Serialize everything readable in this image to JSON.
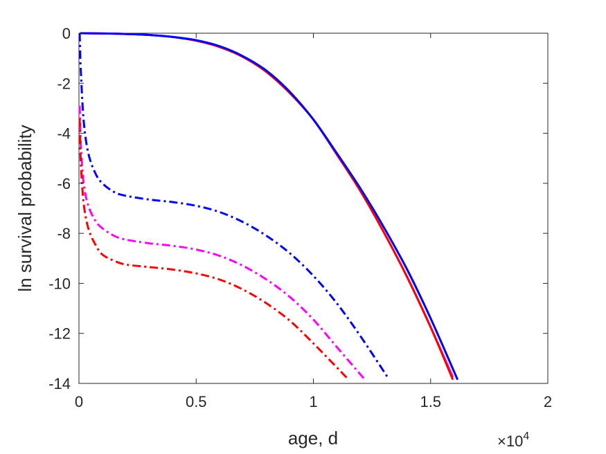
{
  "chart_data": {
    "type": "line",
    "title": "",
    "xlabel": "age, d",
    "ylabel": "ln survival probability",
    "x_exponent_label": "×10",
    "x_exponent_power": "4",
    "xlim": [
      0,
      20000
    ],
    "ylim": [
      -14,
      0
    ],
    "xticks": [
      0,
      5000,
      10000,
      15000,
      20000
    ],
    "xtick_labels": [
      "0",
      "0.5",
      "1",
      "1.5",
      "2"
    ],
    "yticks": [
      0,
      -2,
      -4,
      -6,
      -8,
      -10,
      -12,
      -14
    ],
    "ytick_labels": [
      "0",
      "-2",
      "-4",
      "-6",
      "-8",
      "-10",
      "-12",
      "-14"
    ],
    "grid": false,
    "legend": "none",
    "series": [
      {
        "color": "#ff00ff",
        "style": "solid",
        "x": [
          50,
          1000,
          2000,
          3000,
          4000,
          5000,
          6000,
          7000,
          8000,
          9000,
          10000,
          11000,
          12000,
          13000,
          14000,
          15000,
          15950
        ],
        "y": [
          0,
          -0.01,
          -0.03,
          -0.07,
          -0.15,
          -0.3,
          -0.55,
          -0.95,
          -1.55,
          -2.4,
          -3.45,
          -4.85,
          -6.3,
          -7.95,
          -9.75,
          -11.75,
          -13.75
        ]
      },
      {
        "color": "#ff0000",
        "style": "solid",
        "x": [
          50,
          1000,
          2000,
          3000,
          4000,
          5000,
          6000,
          7000,
          8000,
          9000,
          10000,
          11000,
          12000,
          13000,
          14000,
          15000,
          15950
        ],
        "y": [
          0,
          -0.01,
          -0.03,
          -0.07,
          -0.15,
          -0.3,
          -0.55,
          -0.95,
          -1.55,
          -2.4,
          -3.45,
          -4.85,
          -6.3,
          -7.95,
          -9.75,
          -11.75,
          -13.85
        ]
      },
      {
        "color": "#0000ff",
        "style": "solid",
        "x": [
          50,
          1000,
          2000,
          3000,
          4000,
          5000,
          6000,
          7000,
          8000,
          9000,
          10000,
          11000,
          12000,
          13000,
          14000,
          15000,
          16150
        ],
        "y": [
          0,
          -0.01,
          -0.03,
          -0.07,
          -0.15,
          -0.28,
          -0.52,
          -0.92,
          -1.5,
          -2.35,
          -3.45,
          -4.8,
          -6.2,
          -7.75,
          -9.45,
          -11.4,
          -13.85
        ]
      },
      {
        "color": "#0000ff",
        "style": "dashdot",
        "x": [
          30,
          80,
          200,
          400,
          700,
          1000,
          1500,
          2000,
          3000,
          4000,
          5000,
          6000,
          7000,
          8000,
          9000,
          10000,
          11000,
          12000,
          13200
        ],
        "y": [
          0,
          -1.5,
          -3.5,
          -4.8,
          -5.6,
          -6.0,
          -6.35,
          -6.5,
          -6.65,
          -6.75,
          -6.9,
          -7.15,
          -7.55,
          -8.1,
          -8.8,
          -9.7,
          -10.8,
          -12.1,
          -13.8
        ]
      },
      {
        "color": "#ff00ff",
        "style": "dashdot",
        "x": [
          30,
          80,
          200,
          400,
          700,
          1000,
          1500,
          2000,
          3000,
          4000,
          5000,
          6000,
          7000,
          8000,
          9000,
          10000,
          11000,
          12150
        ],
        "y": [
          -2.9,
          -4.5,
          -6.0,
          -6.9,
          -7.5,
          -7.8,
          -8.1,
          -8.25,
          -8.4,
          -8.5,
          -8.65,
          -8.9,
          -9.3,
          -9.85,
          -10.55,
          -11.45,
          -12.55,
          -13.8
        ]
      },
      {
        "color": "#ff0000",
        "style": "dashdot",
        "x": [
          30,
          80,
          200,
          400,
          700,
          1000,
          1500,
          2000,
          3000,
          4000,
          5000,
          6000,
          7000,
          8000,
          9000,
          10000,
          11450
        ],
        "y": [
          -3.4,
          -5.2,
          -6.8,
          -7.8,
          -8.45,
          -8.85,
          -9.1,
          -9.25,
          -9.35,
          -9.45,
          -9.6,
          -9.85,
          -10.25,
          -10.8,
          -11.5,
          -12.4,
          -13.8
        ]
      }
    ]
  }
}
